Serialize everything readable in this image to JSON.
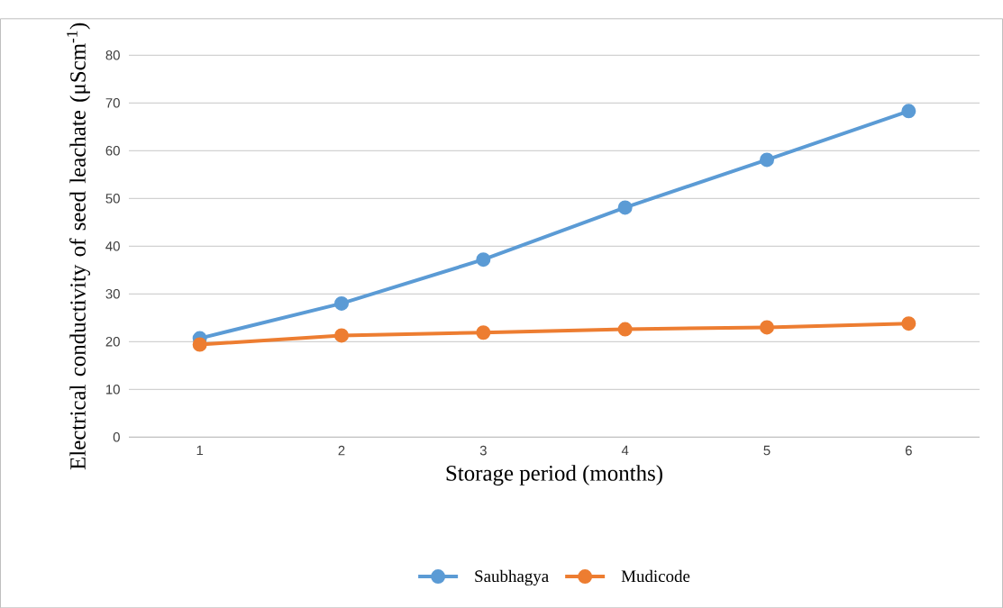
{
  "chart_data": {
    "type": "line",
    "xlabel": "Storage period (months)",
    "ylabel": "Electrical conductivity of seed leachate (μScm$^{-1}$)",
    "categories": [
      "1",
      "2",
      "3",
      "4",
      "5",
      "6"
    ],
    "series": [
      {
        "name": "Saubhagya",
        "color": "#5b9bd5",
        "values": [
          20.7,
          28.0,
          37.2,
          48.1,
          58.1,
          68.3
        ]
      },
      {
        "name": "Mudicode",
        "color": "#ed7d31",
        "values": [
          19.4,
          21.3,
          21.9,
          22.6,
          23.0,
          23.8
        ]
      }
    ],
    "ylim": [
      0,
      80
    ],
    "yticks": [
      0,
      10,
      20,
      30,
      40,
      50,
      60,
      70,
      80
    ],
    "grid": "y",
    "legend": "bottom",
    "marker": "circle",
    "line_style": "solid"
  }
}
